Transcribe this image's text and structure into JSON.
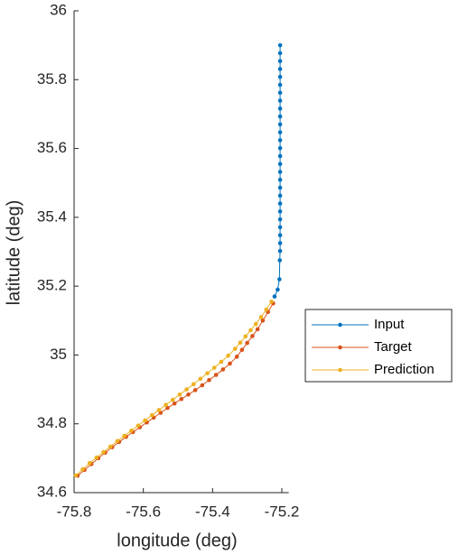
{
  "chart_data": {
    "type": "line",
    "xlabel": "longitude (deg)",
    "ylabel": "latitude (deg)",
    "xlim": [
      -75.8,
      -75.18
    ],
    "xticks": [
      -75.8,
      -75.6,
      -75.4,
      -75.2
    ],
    "ylim": [
      34.6,
      36
    ],
    "yticks": [
      34.6,
      34.8,
      35,
      35.2,
      35.4,
      35.6,
      35.8,
      36
    ],
    "legend": "outside-right",
    "series": [
      {
        "name": "Input",
        "color": "#0072bd",
        "x": [
          -75.205,
          -75.205,
          -75.205,
          -75.205,
          -75.205,
          -75.205,
          -75.205,
          -75.205,
          -75.205,
          -75.205,
          -75.205,
          -75.205,
          -75.205,
          -75.205,
          -75.205,
          -75.205,
          -75.205,
          -75.205,
          -75.205,
          -75.205,
          -75.205,
          -75.205,
          -75.205,
          -75.205,
          -75.205,
          -75.205,
          -75.205,
          -75.206,
          -75.207,
          -75.212,
          -75.221
        ],
        "values": [
          35.9,
          35.877,
          35.854,
          35.831,
          35.808,
          35.785,
          35.762,
          35.739,
          35.716,
          35.693,
          35.67,
          35.647,
          35.624,
          35.601,
          35.578,
          35.555,
          35.532,
          35.509,
          35.486,
          35.463,
          35.44,
          35.417,
          35.394,
          35.371,
          35.348,
          35.325,
          35.302,
          35.275,
          35.22,
          35.19,
          35.17
        ]
      },
      {
        "name": "Target",
        "color": "#d95319",
        "x": [
          -75.225,
          -75.24,
          -75.255,
          -75.27,
          -75.285,
          -75.3,
          -75.315,
          -75.33,
          -75.35,
          -75.37,
          -75.39,
          -75.41,
          -75.43,
          -75.45,
          -75.47,
          -75.49,
          -75.51,
          -75.53,
          -75.55,
          -75.57,
          -75.59,
          -75.61,
          -75.63,
          -75.65,
          -75.67,
          -75.69,
          -75.71,
          -75.73,
          -75.75,
          -75.77,
          -75.79
        ],
        "values": [
          35.15,
          35.125,
          35.1,
          35.075,
          35.055,
          35.035,
          35.015,
          34.995,
          34.975,
          34.958,
          34.942,
          34.927,
          34.912,
          34.898,
          34.885,
          34.872,
          34.859,
          34.846,
          34.832,
          34.818,
          34.804,
          34.79,
          34.776,
          34.762,
          34.747,
          34.732,
          34.716,
          34.7,
          34.683,
          34.666,
          34.649
        ]
      },
      {
        "name": "Prediction",
        "color": "#edb120",
        "x": [
          -75.23,
          -75.245,
          -75.26,
          -75.275,
          -75.29,
          -75.305,
          -75.32,
          -75.335,
          -75.355,
          -75.375,
          -75.395,
          -75.415,
          -75.435,
          -75.455,
          -75.475,
          -75.495,
          -75.515,
          -75.535,
          -75.555,
          -75.575,
          -75.595,
          -75.615,
          -75.635,
          -75.655,
          -75.675,
          -75.695,
          -75.715,
          -75.735,
          -75.755,
          -75.775,
          -75.795
        ],
        "values": [
          35.155,
          35.132,
          35.11,
          35.09,
          35.072,
          35.054,
          35.036,
          35.018,
          34.998,
          34.98,
          34.963,
          34.947,
          34.931,
          34.915,
          34.9,
          34.885,
          34.87,
          34.855,
          34.84,
          34.825,
          34.81,
          34.795,
          34.78,
          34.765,
          34.75,
          34.734,
          34.718,
          34.702,
          34.686,
          34.668,
          34.65
        ]
      }
    ]
  }
}
